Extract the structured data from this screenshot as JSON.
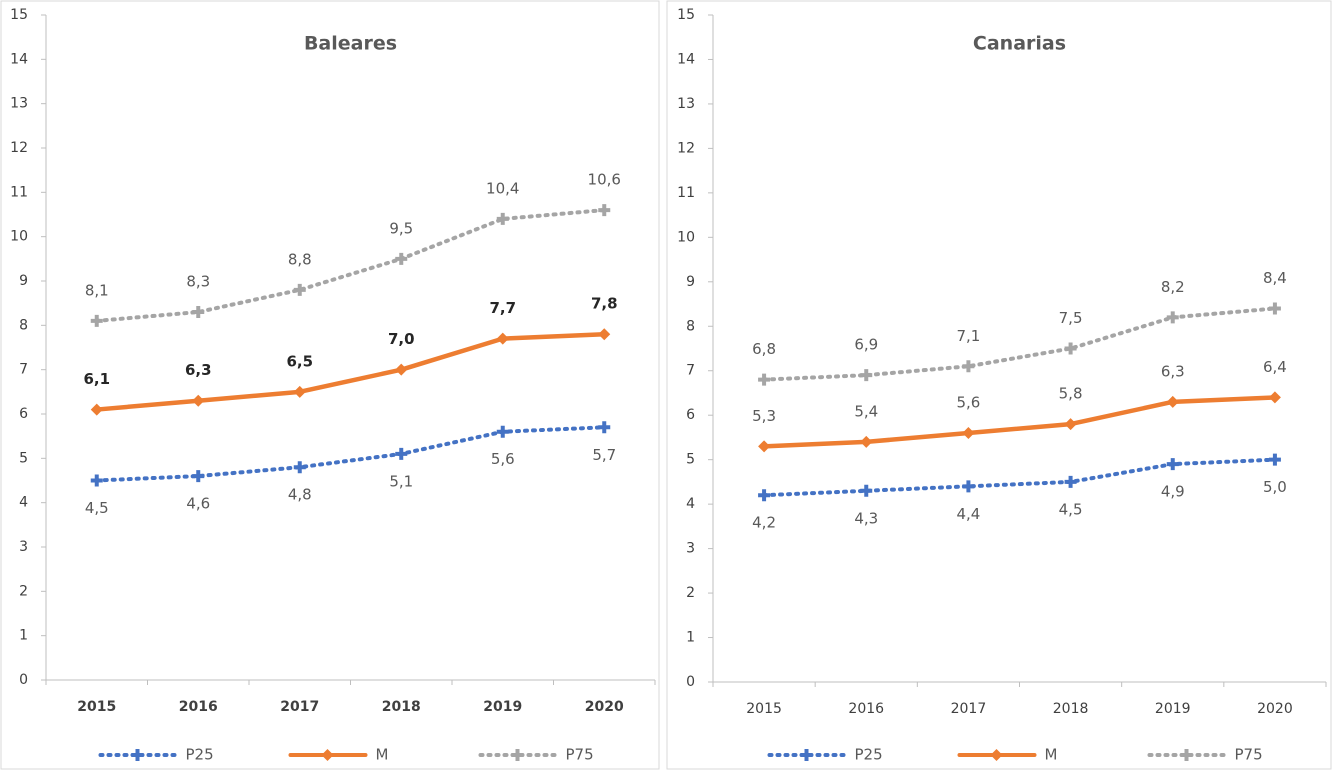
{
  "chart_data": [
    {
      "type": "line",
      "title": "Baleares",
      "categories": [
        "2015",
        "2016",
        "2017",
        "2018",
        "2019",
        "2020"
      ],
      "ylim": [
        0,
        15
      ],
      "yticks": [
        0,
        1,
        2,
        3,
        4,
        5,
        6,
        7,
        8,
        9,
        10,
        11,
        12,
        13,
        14,
        15
      ],
      "series": [
        {
          "name": "P25",
          "color": "#4472c4",
          "dash": "dotted",
          "marker": "plus",
          "values": [
            4.5,
            4.6,
            4.8,
            5.1,
            5.6,
            5.7
          ],
          "value_labels": [
            "4,5",
            "4,6",
            "4,8",
            "5,1",
            "5,6",
            "5,7"
          ]
        },
        {
          "name": "M",
          "color": "#ed7d31",
          "dash": "solid",
          "marker": "diamond",
          "values": [
            6.1,
            6.3,
            6.5,
            7.0,
            7.7,
            7.8
          ],
          "value_labels": [
            "6,1",
            "6,3",
            "6,5",
            "7,0",
            "7,7",
            "7,8"
          ]
        },
        {
          "name": "P75",
          "color": "#a5a5a5",
          "dash": "dotted",
          "marker": "plus",
          "values": [
            8.1,
            8.3,
            8.8,
            9.5,
            10.4,
            10.6
          ],
          "value_labels": [
            "8,1",
            "8,3",
            "8,8",
            "9,5",
            "10,4",
            "10,6"
          ]
        }
      ]
    },
    {
      "type": "line",
      "title": "Canarias",
      "categories": [
        "2015",
        "2016",
        "2017",
        "2018",
        "2019",
        "2020"
      ],
      "ylim": [
        0,
        15
      ],
      "yticks": [
        0,
        1,
        2,
        3,
        4,
        5,
        6,
        7,
        8,
        9,
        10,
        11,
        12,
        13,
        14,
        15
      ],
      "series": [
        {
          "name": "P25",
          "color": "#4472c4",
          "dash": "dotted",
          "marker": "plus",
          "values": [
            4.2,
            4.3,
            4.4,
            4.5,
            4.9,
            5.0
          ],
          "value_labels": [
            "4,2",
            "4,3",
            "4,4",
            "4,5",
            "4,9",
            "5,0"
          ]
        },
        {
          "name": "M",
          "color": "#ed7d31",
          "dash": "solid",
          "marker": "diamond",
          "values": [
            5.3,
            5.4,
            5.6,
            5.8,
            6.3,
            6.4
          ],
          "value_labels": [
            "5,3",
            "5,4",
            "5,6",
            "5,8",
            "6,3",
            "6,4"
          ]
        },
        {
          "name": "P75",
          "color": "#a5a5a5",
          "dash": "dotted",
          "marker": "plus",
          "values": [
            6.8,
            6.9,
            7.1,
            7.5,
            8.2,
            8.4
          ],
          "value_labels": [
            "6,8",
            "6,9",
            "7,1",
            "7,5",
            "8,2",
            "8,4"
          ]
        }
      ]
    }
  ]
}
